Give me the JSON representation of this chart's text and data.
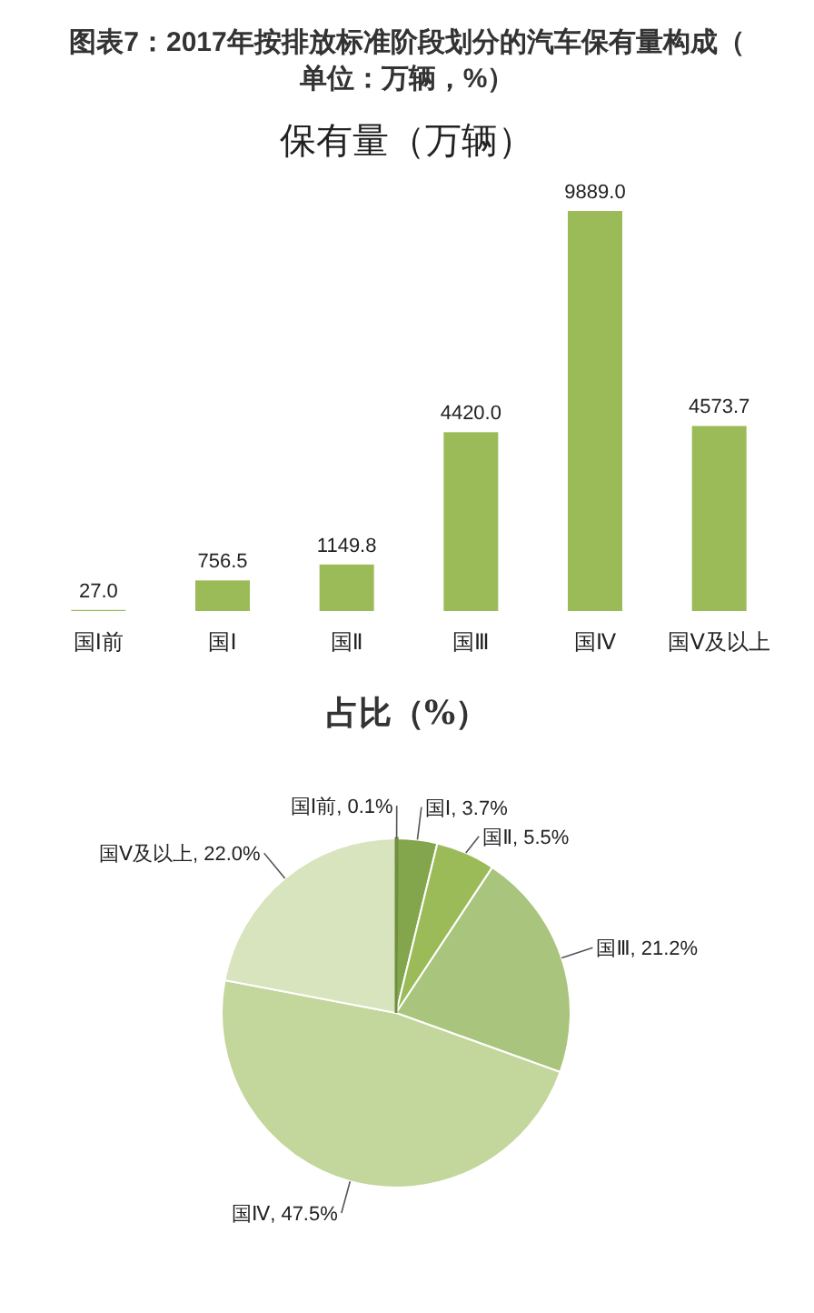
{
  "chart_data": [
    {
      "type": "bar",
      "title": "图表7：2017年按排放标准阶段划分的汽车保有量构成（单位：万辆，%）",
      "subtitle": "保有量（万辆）",
      "categories": [
        "国Ⅰ前",
        "国Ⅰ",
        "国Ⅱ",
        "国Ⅲ",
        "国Ⅳ",
        "国Ⅴ及以上"
      ],
      "series": [
        {
          "color": "#9bbb59",
          "values": [
            27.0,
            756.5,
            1149.8,
            4420.0,
            9889.0,
            4573.7
          ],
          "value_labels": [
            "27.0",
            "756.5",
            "1149.8",
            "4420.0",
            "9889.0",
            "4573.7"
          ]
        }
      ]
    },
    {
      "type": "pie",
      "title": "占比（%）",
      "categories": [
        "国Ⅰ前",
        "国Ⅰ",
        "国Ⅱ",
        "国Ⅲ",
        "国Ⅳ",
        "国Ⅴ及以上"
      ],
      "values": [
        0.1,
        3.7,
        5.5,
        21.2,
        47.5,
        22.0
      ],
      "colors": [
        "#6f8f3f",
        "#83a54c",
        "#9bbb59",
        "#a9c47c",
        "#c3d69b",
        "#d7e4bd"
      ],
      "value_labels": [
        "0.1%",
        "3.7%",
        "5.5%",
        "21.2%",
        "47.5%",
        "22.0%"
      ]
    }
  ]
}
